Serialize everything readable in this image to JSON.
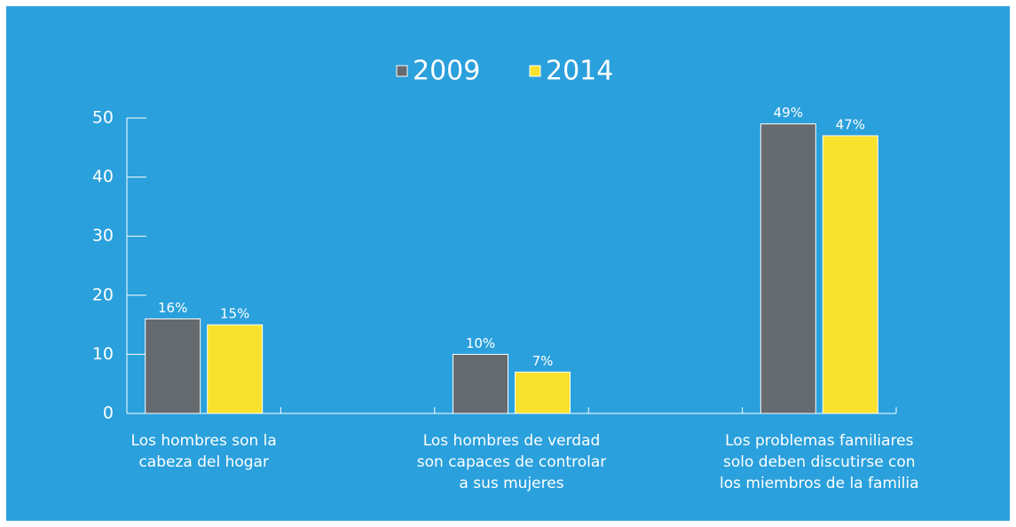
{
  "chart_data": {
    "type": "bar",
    "categories": [
      [
        "Los hombres son la",
        "cabeza del hogar"
      ],
      [
        "Los hombres de verdad",
        "son capaces de controlar",
        "a sus mujeres"
      ],
      [
        "Los problemas familiares",
        "solo deben discutirse con",
        "los miembros de la familia"
      ]
    ],
    "series": [
      {
        "name": "2009",
        "color": "#656a6e",
        "values": [
          16,
          10,
          49
        ],
        "value_labels": [
          "16%",
          "10%",
          "49%"
        ]
      },
      {
        "name": "2014",
        "color": "#f9e22e",
        "values": [
          15,
          7,
          47
        ],
        "value_labels": [
          "15%",
          "7%",
          "47%"
        ]
      }
    ],
    "ylim": [
      0,
      50
    ],
    "yticks": [
      0,
      10,
      20,
      30,
      40,
      50
    ]
  }
}
